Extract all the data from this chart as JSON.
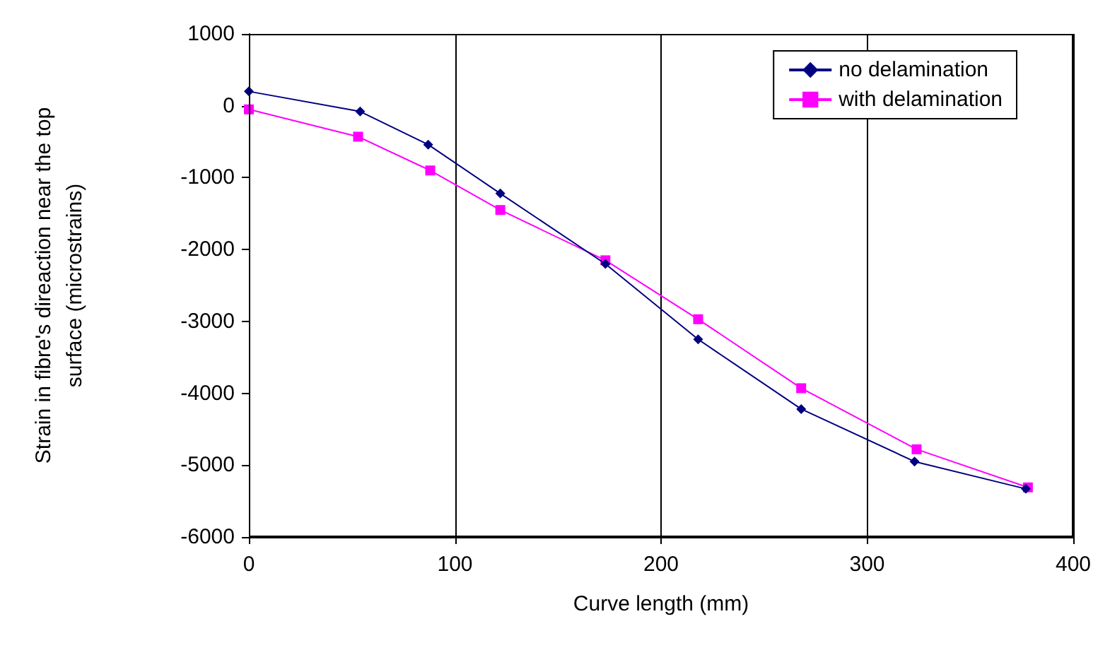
{
  "chart_data": {
    "type": "line",
    "xlabel": "Curve length (mm)",
    "ylabel": "Strain in fibre's direaction near the top\nsurface (microstrains)",
    "series": [
      {
        "name": "no delamination",
        "color": "#000080",
        "marker": "diamond",
        "x": [
          0,
          54,
          87,
          122,
          173,
          218,
          268,
          323,
          377
        ],
        "values": [
          200,
          -80,
          -540,
          -1220,
          -2200,
          -3250,
          -4220,
          -4950,
          -5330
        ]
      },
      {
        "name": "with delamination",
        "color": "#ff00ff",
        "marker": "square",
        "x": [
          0,
          53,
          88,
          122,
          173,
          218,
          268,
          324,
          378
        ],
        "values": [
          -50,
          -430,
          -900,
          -1450,
          -2150,
          -2970,
          -3930,
          -4780,
          -5310
        ]
      }
    ],
    "xlim": [
      0,
      400
    ],
    "xticks": [
      0,
      100,
      200,
      300,
      400
    ],
    "ylim": [
      -6000,
      1000
    ],
    "yticks": [
      -6000,
      -5000,
      -4000,
      -3000,
      -2000,
      -1000,
      0,
      1000
    ],
    "grid": "x",
    "legend": "top right",
    "line_style": "solid"
  }
}
